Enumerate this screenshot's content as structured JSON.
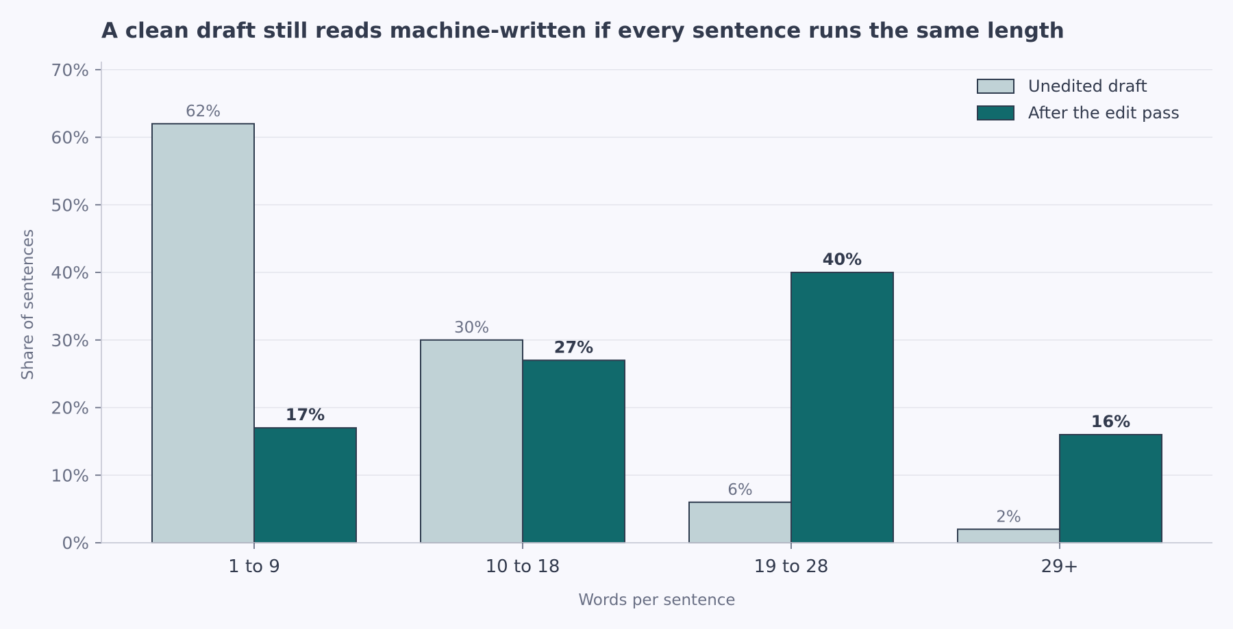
{
  "chart_data": {
    "type": "bar",
    "title": "A clean draft still reads machine-written if every sentence runs the same length",
    "xlabel": "Words per sentence",
    "ylabel": "Share of sentences",
    "categories": [
      "1 to 9",
      "10 to 18",
      "19 to 28",
      "29+"
    ],
    "series": [
      {
        "name": "Unedited draft",
        "values": [
          62,
          30,
          6,
          2
        ],
        "color": "#c0d2d6",
        "data_labels": [
          "62%",
          "30%",
          "6%",
          "2%"
        ]
      },
      {
        "name": "After the edit pass",
        "values": [
          17,
          27,
          40,
          16
        ],
        "color": "#116a6c",
        "data_labels": [
          "17%",
          "27%",
          "40%",
          "16%"
        ]
      }
    ],
    "ylim": [
      0,
      72
    ],
    "yticks": [
      0,
      10,
      20,
      30,
      40,
      50,
      60,
      70
    ],
    "ytick_labels": [
      "0%",
      "10%",
      "20%",
      "30%",
      "40%",
      "50%",
      "60%",
      "70%"
    ],
    "grid": true,
    "legend_position": "top-right",
    "bar_edge_color": "#2e3b4e"
  }
}
